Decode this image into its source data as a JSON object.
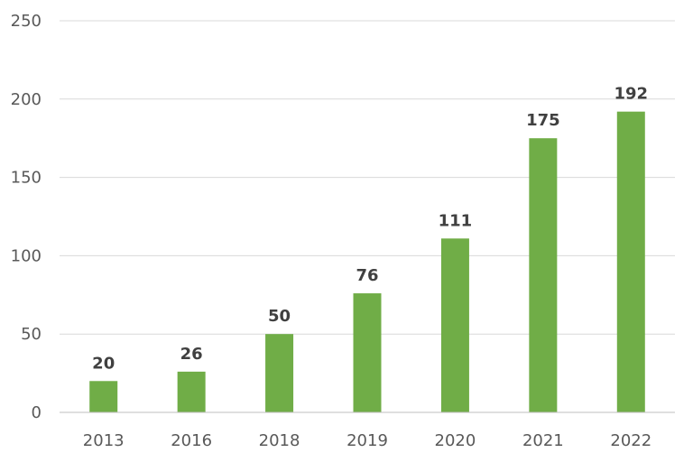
{
  "colors": {
    "bar": "#70ad47",
    "grid": "#d9d9d9",
    "axis": "#bfbfbf",
    "tick_text": "#595959",
    "label_text": "#404040",
    "background": "#ffffff"
  },
  "chart_data": {
    "type": "bar",
    "title": "",
    "xlabel": "",
    "ylabel": "",
    "categories": [
      "2013",
      "2016",
      "2018",
      "2019",
      "2020",
      "2021",
      "2022"
    ],
    "values": [
      20,
      26,
      50,
      76,
      111,
      175,
      192
    ],
    "ylim": [
      0,
      250
    ],
    "yticks": [
      0,
      50,
      100,
      150,
      200,
      250
    ],
    "grid": true,
    "legend": "none",
    "data_labels": true
  }
}
